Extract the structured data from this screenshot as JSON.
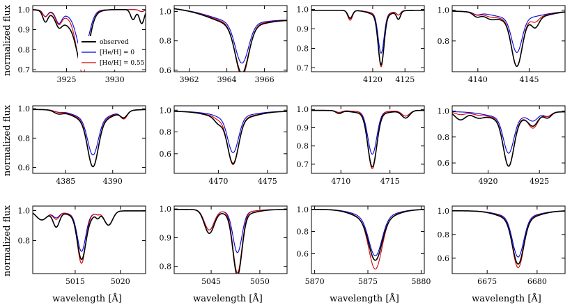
{
  "chart_data": {
    "type": "line",
    "grid": false,
    "ylabel": "normalized flux",
    "xlabel": "wavelength [Å]",
    "legend": {
      "placement": "inside-first-panel-lower-right",
      "entries": [
        {
          "label": "observed",
          "color": "#000000"
        },
        {
          "label": "[He/H] = 0",
          "color": "#0000dd"
        },
        {
          "label": "[He/H] = 0.55",
          "color": "#dd0000"
        }
      ]
    },
    "series_names": [
      "observed",
      "[He/H] = 0",
      "[He/H] = 0.55"
    ],
    "colors": {
      "observed": "#000000",
      "he0": "#0000dd",
      "he055": "#dd0000"
    },
    "panels": [
      {
        "xlim": [
          3921.5,
          3933.2
        ],
        "ylim": [
          0.69,
          1.02
        ],
        "xticks": [
          {
            "v": 3925,
            "t": "3925"
          },
          {
            "v": 3930,
            "t": "3930"
          }
        ],
        "yticks": [
          {
            "v": 0.7,
            "t": "0.7"
          },
          {
            "v": 0.8,
            "t": "0.8"
          },
          {
            "v": 0.9,
            "t": "0.9"
          },
          {
            "v": 1.0,
            "t": "1.0"
          }
        ],
        "continuum": 1.0,
        "lines": [
          {
            "c": 3922.8,
            "w": 0.25,
            "d": [
              0.05,
              0.03,
              0.03
            ]
          },
          {
            "c": 3924.2,
            "w": 0.3,
            "d": [
              0.04,
              0.05,
              0.05
            ]
          },
          {
            "c": 3926.7,
            "w": 0.6,
            "d": [
              0.23,
              0.2,
              0.29
            ]
          },
          {
            "c": 3925.5,
            "w": 1.4,
            "d": [
              0.08,
              0.03,
              0.04
            ]
          },
          {
            "c": 3931.9,
            "w": 0.25,
            "d": [
              0.05,
              0.0,
              0.0
            ]
          },
          {
            "c": 3932.8,
            "w": 0.25,
            "d": [
              0.07,
              0.01,
              0.01
            ]
          }
        ]
      },
      {
        "xlim": [
          3961.2,
          3967.2
        ],
        "ylim": [
          0.59,
          1.04
        ],
        "xticks": [
          {
            "v": 3962,
            "t": "3962"
          },
          {
            "v": 3964,
            "t": "3964"
          },
          {
            "v": 3966,
            "t": "3966"
          }
        ],
        "yticks": [
          {
            "v": 0.6,
            "t": "0.6"
          },
          {
            "v": 0.8,
            "t": "0.8"
          },
          {
            "v": 1.0,
            "t": "1.0"
          }
        ],
        "continuum": 0.985,
        "slope": -0.012,
        "lines": [
          {
            "c": 3964.8,
            "w": 0.35,
            "d": [
              0.32,
              0.27,
              0.35
            ]
          },
          {
            "c": 3964.6,
            "w": 1.3,
            "d": [
              0.08,
              0.06,
              0.07
            ]
          }
        ]
      },
      {
        "xlim": [
          4110.5,
          4128
        ],
        "ylim": [
          0.68,
          1.02
        ],
        "xticks": [
          {
            "v": 4120,
            "t": "4120"
          },
          {
            "v": 4125,
            "t": "4125"
          }
        ],
        "yticks": [
          {
            "v": 0.7,
            "t": "0.7"
          },
          {
            "v": 0.8,
            "t": "0.8"
          },
          {
            "v": 0.9,
            "t": "0.9"
          },
          {
            "v": 1.0,
            "t": "1.0"
          }
        ],
        "continuum": 0.995,
        "lines": [
          {
            "c": 4116.5,
            "w": 0.35,
            "d": [
              0.04,
              0.05,
              0.05
            ]
          },
          {
            "c": 4121.3,
            "w": 0.45,
            "d": [
              0.25,
              0.2,
              0.27
            ]
          },
          {
            "c": 4121.3,
            "w": 1.5,
            "d": [
              0.03,
              0.02,
              0.02
            ]
          },
          {
            "c": 4124.0,
            "w": 0.3,
            "d": [
              0.04,
              0.02,
              0.02
            ]
          }
        ]
      },
      {
        "xlim": [
          4137.5,
          4148.5
        ],
        "ylim": [
          0.6,
          1.03
        ],
        "xticks": [
          {
            "v": 4140,
            "t": "4140"
          },
          {
            "v": 4145,
            "t": "4145"
          }
        ],
        "yticks": [
          {
            "v": 0.8,
            "t": "0.8"
          },
          {
            "v": 1.0,
            "t": "1.0"
          }
        ],
        "continuum": 0.995,
        "lines": [
          {
            "c": 4143.8,
            "w": 0.5,
            "d": [
              0.29,
              0.22,
              0.3
            ]
          },
          {
            "c": 4143.8,
            "w": 2.2,
            "d": [
              0.07,
              0.05,
              0.06
            ]
          },
          {
            "c": 4139.9,
            "w": 0.35,
            "d": [
              0.025,
              0.015,
              0.015
            ]
          },
          {
            "c": 4141.2,
            "w": 0.5,
            "d": [
              0.02,
              0.0,
              0.01
            ]
          },
          {
            "c": 4145.6,
            "w": 0.35,
            "d": [
              0.06,
              0.0,
              0.03
            ]
          }
        ]
      },
      {
        "xlim": [
          4381.5,
          4393.5
        ],
        "ylim": [
          0.56,
          1.02
        ],
        "xticks": [
          {
            "v": 4385,
            "t": "4385"
          },
          {
            "v": 4390,
            "t": "4390"
          }
        ],
        "yticks": [
          {
            "v": 0.6,
            "t": "0.6"
          },
          {
            "v": 0.8,
            "t": "0.8"
          },
          {
            "v": 1.0,
            "t": "1.0"
          }
        ],
        "continuum": 0.995,
        "lines": [
          {
            "c": 4387.9,
            "w": 0.55,
            "d": [
              0.3,
              0.24,
              0.31
            ]
          },
          {
            "c": 4387.9,
            "w": 1.8,
            "d": [
              0.09,
              0.07,
              0.08
            ]
          },
          {
            "c": 4384.2,
            "w": 0.45,
            "d": [
              0.02,
              0.01,
              0.01
            ]
          },
          {
            "c": 4391.2,
            "w": 0.35,
            "d": [
              0.04,
              0.05,
              0.05
            ]
          }
        ]
      },
      {
        "xlim": [
          4465.5,
          4477
        ],
        "ylim": [
          0.42,
          1.04
        ],
        "xticks": [
          {
            "v": 4470,
            "t": "4470"
          },
          {
            "v": 4475,
            "t": "4475"
          }
        ],
        "yticks": [
          {
            "v": 0.6,
            "t": "0.6"
          },
          {
            "v": 0.8,
            "t": "0.8"
          },
          {
            "v": 1.0,
            "t": "1.0"
          }
        ],
        "continuum": 0.99,
        "lines": [
          {
            "c": 4471.5,
            "w": 0.55,
            "d": [
              0.4,
              0.33,
              0.42
            ]
          },
          {
            "c": 4471.4,
            "w": 2.0,
            "d": [
              0.08,
              0.05,
              0.07
            ]
          },
          {
            "c": 4470.0,
            "w": 0.4,
            "d": [
              0.05,
              0.01,
              0.02
            ]
          }
        ]
      },
      {
        "xlim": [
          4707,
          4718.5
        ],
        "ylim": [
          0.65,
          1.02
        ],
        "xticks": [
          {
            "v": 4710,
            "t": "4710"
          },
          {
            "v": 4715,
            "t": "4715"
          }
        ],
        "yticks": [
          {
            "v": 0.7,
            "t": "0.7"
          },
          {
            "v": 0.8,
            "t": "0.8"
          },
          {
            "v": 0.9,
            "t": "0.9"
          },
          {
            "v": 1.0,
            "t": "1.0"
          }
        ],
        "continuum": 0.995,
        "lines": [
          {
            "c": 4713.2,
            "w": 0.45,
            "d": [
              0.29,
              0.23,
              0.31
            ]
          },
          {
            "c": 4713.2,
            "w": 1.6,
            "d": [
              0.02,
              0.01,
              0.01
            ]
          },
          {
            "c": 4709.8,
            "w": 0.3,
            "d": [
              0.015,
              0.01,
              0.01
            ]
          },
          {
            "c": 4716.6,
            "w": 0.4,
            "d": [
              0.04,
              0.03,
              0.03
            ]
          }
        ]
      },
      {
        "xlim": [
          4916.5,
          4927.5
        ],
        "ylim": [
          0.52,
          1.04
        ],
        "xticks": [
          {
            "v": 4920,
            "t": "4920"
          },
          {
            "v": 4925,
            "t": "4925"
          }
        ],
        "yticks": [
          {
            "v": 0.6,
            "t": "0.6"
          },
          {
            "v": 0.8,
            "t": "0.8"
          },
          {
            "v": 1.0,
            "t": "1.0"
          }
        ],
        "continuum": 0.995,
        "lines": [
          {
            "c": 4922.0,
            "w": 0.5,
            "d": [
              0.35,
              0.27,
              0.36
            ]
          },
          {
            "c": 4922.0,
            "w": 1.9,
            "d": [
              0.07,
              0.05,
              0.06
            ]
          },
          {
            "c": 4924.4,
            "w": 0.45,
            "d": [
              0.08,
              0.05,
              0.1
            ]
          },
          {
            "c": 4925.8,
            "w": 0.35,
            "d": [
              0.04,
              0.03,
              0.03
            ]
          },
          {
            "c": 4917.3,
            "w": 0.5,
            "d": [
              0.06,
              0.0,
              0.02
            ]
          },
          {
            "c": 4919.0,
            "w": 0.5,
            "d": [
              0.03,
              0.0,
              0.01
            ]
          }
        ]
      },
      {
        "xlim": [
          5010.3,
          5022.8
        ],
        "ylim": [
          0.58,
          1.03
        ],
        "xticks": [
          {
            "v": 5015,
            "t": "5015"
          },
          {
            "v": 5020,
            "t": "5020"
          }
        ],
        "yticks": [
          {
            "v": 0.8,
            "t": "0.8"
          },
          {
            "v": 1.0,
            "t": "1.0"
          }
        ],
        "continuum": 0.998,
        "lines": [
          {
            "c": 5015.7,
            "w": 0.45,
            "d": [
              0.28,
              0.24,
              0.32
            ]
          },
          {
            "c": 5015.7,
            "w": 1.5,
            "d": [
              0.04,
              0.03,
              0.03
            ]
          },
          {
            "c": 5011.3,
            "w": 0.6,
            "d": [
              0.06,
              0.06,
              0.06
            ]
          },
          {
            "c": 5012.9,
            "w": 0.35,
            "d": [
              0.1,
              0.04,
              0.05
            ]
          },
          {
            "c": 5017.5,
            "w": 0.2,
            "d": [
              0.03,
              0.01,
              0.01
            ]
          },
          {
            "c": 5016.5,
            "w": 0.45,
            "d": [
              0.02,
              0.0,
              0.0
            ]
          },
          {
            "c": 5018.7,
            "w": 0.45,
            "d": [
              0.09,
              0.09,
              0.09
            ]
          }
        ]
      },
      {
        "xlim": [
          5041.2,
          5052.8
        ],
        "ylim": [
          0.775,
          1.01
        ],
        "xticks": [
          {
            "v": 5045,
            "t": "5045"
          },
          {
            "v": 5050,
            "t": "5050"
          }
        ],
        "yticks": [
          {
            "v": 0.8,
            "t": "0.8"
          },
          {
            "v": 0.9,
            "t": "0.9"
          },
          {
            "v": 1.0,
            "t": "1.0"
          }
        ],
        "continuum": 0.998,
        "lines": [
          {
            "c": 5047.7,
            "w": 0.45,
            "d": [
              0.21,
              0.14,
              0.21
            ]
          },
          {
            "c": 5047.7,
            "w": 1.5,
            "d": [
              0.02,
              0.01,
              0.01
            ]
          },
          {
            "c": 5044.8,
            "w": 0.5,
            "d": [
              0.08,
              0.07,
              0.07
            ]
          }
        ]
      },
      {
        "xlim": [
          5869.7,
          5880.3
        ],
        "ylim": [
          0.42,
          1.03
        ],
        "xticks": [
          {
            "v": 5870,
            "t": "5870"
          },
          {
            "v": 5875,
            "t": "5875"
          },
          {
            "v": 5880,
            "t": "5880"
          }
        ],
        "yticks": [
          {
            "v": 0.6,
            "t": "0.6"
          },
          {
            "v": 0.8,
            "t": "0.8"
          },
          {
            "v": 1.0,
            "t": "1.0"
          }
        ],
        "continuum": 1.0,
        "lines": [
          {
            "c": 5875.7,
            "w": 0.6,
            "d": [
              0.35,
              0.34,
              0.44
            ]
          },
          {
            "c": 5875.6,
            "w": 1.6,
            "d": [
              0.11,
              0.08,
              0.1
            ]
          }
        ]
      },
      {
        "xlim": [
          6671.5,
          6682.8
        ],
        "ylim": [
          0.47,
          1.04
        ],
        "xticks": [
          {
            "v": 6675,
            "t": "6675"
          },
          {
            "v": 6680,
            "t": "6680"
          }
        ],
        "yticks": [
          {
            "v": 0.6,
            "t": "0.6"
          },
          {
            "v": 0.8,
            "t": "0.8"
          },
          {
            "v": 1.0,
            "t": "1.0"
          }
        ],
        "continuum": 1.0,
        "lines": [
          {
            "c": 6678.1,
            "w": 0.55,
            "d": [
              0.37,
              0.33,
              0.41
            ]
          },
          {
            "c": 6678.1,
            "w": 1.7,
            "d": [
              0.08,
              0.06,
              0.07
            ]
          }
        ]
      }
    ]
  }
}
